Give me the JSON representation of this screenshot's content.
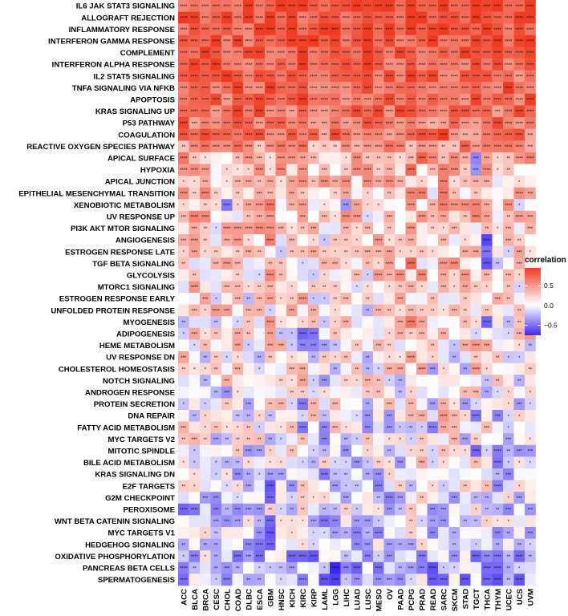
{
  "chart_data": {
    "type": "heatmap",
    "rows": [
      "IL6 JAK STAT3 SIGNALING",
      "ALLOGRAFT REJECTION",
      "INFLAMMATORY RESPONSE",
      "INTERFERON GAMMA RESPONSE",
      "COMPLEMENT",
      "INTERFERON ALPHA RESPONSE",
      "IL2 STAT5 SIGNALING",
      "TNFA SIGNALING VIA NFKB",
      "APOPTOSIS",
      "KRAS SIGNALING UP",
      "P53 PATHWAY",
      "COAGULATION",
      "REACTIVE OXYGEN SPECIES PATHWAY",
      "APICAL SURFACE",
      "HYPOXIA",
      "APICAL JUNCTION",
      "EPITHELIAL MESENCHYMAL TRANSITION",
      "XENOBIOTIC METABOLISM",
      "UV RESPONSE UP",
      "PI3K AKT MTOR SIGNALING",
      "ANGIOGENESIS",
      "ESTROGEN RESPONSE LATE",
      "TGF BETA SIGNALING",
      "GLYCOLYSIS",
      "MTORC1 SIGNALING",
      "ESTROGEN RESPONSE EARLY",
      "UNFOLDED PROTEIN RESPONSE",
      "MYOGENESIS",
      "ADIPOGENESIS",
      "HEME METABOLISM",
      "UV RESPONSE DN",
      "CHOLESTEROL HOMEOSTASIS",
      "NOTCH SIGNALING",
      "ANDROGEN RESPONSE",
      "PROTEIN SECRETION",
      "DNA REPAIR",
      "FATTY ACID METABOLISM",
      "MYC TARGETS V2",
      "MITOTIC SPINDLE",
      "BILE ACID METABOLISM",
      "KRAS SIGNALING DN",
      "E2F TARGETS",
      "G2M CHECKPOINT",
      "PEROXISOME",
      "WNT BETA CATENIN SIGNALING",
      "MYC TARGETS V1",
      "HEDGEHOG SIGNALING",
      "OXIDATIVE PHOSPHORYLATION",
      "PANCREAS BETA CELLS",
      "SPERMATOGENESIS"
    ],
    "columns": [
      "ACC",
      "BLCA",
      "BRCA",
      "CESC",
      "CHOL",
      "COAD",
      "DLBC",
      "ESCA",
      "GBM",
      "HNSC",
      "KICH",
      "KIRC",
      "KIRP",
      "LAML",
      "LGG",
      "LIHC",
      "LUAD",
      "LUSC",
      "MESO",
      "OV",
      "PAAD",
      "PCPG",
      "PRAD",
      "READ",
      "SARC",
      "SKCM",
      "STAD",
      "TGCT",
      "THCA",
      "THYM",
      "UCEC",
      "UCS",
      "UVM"
    ],
    "col_offsets": [
      0.02,
      0.05,
      0.05,
      0.0,
      0.0,
      0.0,
      -0.05,
      0.03,
      0.1,
      0.0,
      0.0,
      0.06,
      0.0,
      -0.03,
      0.05,
      0.0,
      -0.02,
      -0.03,
      0.0,
      -0.02,
      0.05,
      0.12,
      0.1,
      -0.05,
      0.12,
      0.05,
      0.0,
      0.06,
      0.05,
      -0.05,
      0.0,
      -0.03,
      0.05
    ],
    "row_base": [
      0.72,
      0.72,
      0.71,
      0.7,
      0.69,
      0.67,
      0.66,
      0.66,
      0.64,
      0.62,
      0.58,
      0.57,
      0.42,
      0.28,
      0.24,
      0.22,
      0.22,
      0.2,
      0.2,
      0.18,
      0.15,
      0.14,
      0.14,
      0.13,
      0.12,
      0.1,
      0.1,
      0.08,
      0.06,
      0.05,
      0.04,
      0.03,
      0.02,
      0.0,
      0.0,
      -0.02,
      -0.03,
      -0.05,
      -0.06,
      -0.07,
      -0.08,
      -0.09,
      -0.1,
      -0.12,
      -0.13,
      -0.15,
      -0.17,
      -0.2,
      -0.22,
      -0.25
    ],
    "cell_overrides": [
      {
        "row": "PANCREAS BETA CELLS",
        "col": "LGG",
        "value": -0.75
      },
      {
        "row": "SPERMATOGENESIS",
        "col": "LGG",
        "value": -0.62
      },
      {
        "row": "XENOBIOTIC METABOLISM",
        "col": "CHOL",
        "value": -0.45
      },
      {
        "row": "XENOBIOTIC METABOLISM",
        "col": "LIHC",
        "value": -0.35
      },
      {
        "row": "ANGIOGENESIS",
        "col": "THCA",
        "value": -0.6
      },
      {
        "row": "TGF BETA SIGNALING",
        "col": "THCA",
        "value": -0.55
      },
      {
        "row": "ESTROGEN RESPONSE LATE",
        "col": "THCA",
        "value": -0.45
      },
      {
        "row": "MYOGENESIS",
        "col": "THCA",
        "value": -0.5
      },
      {
        "row": "ADIPOGENESIS",
        "col": "KIRC",
        "value": -0.5
      },
      {
        "row": "ADIPOGENESIS",
        "col": "KIRP",
        "value": -0.45
      },
      {
        "row": "HEME METABOLISM",
        "col": "KIRC",
        "value": -0.4
      },
      {
        "row": "HEME METABOLISM",
        "col": "KIRP",
        "value": -0.4
      },
      {
        "row": "PROTEIN SECRETION",
        "col": "KIRC",
        "value": -0.45
      },
      {
        "row": "OXIDATIVE PHOSPHORYLATION",
        "col": "KIRP",
        "value": -0.55
      },
      {
        "row": "OXIDATIVE PHOSPHORYLATION",
        "col": "KIRC",
        "value": -0.5
      },
      {
        "row": "OXIDATIVE PHOSPHORYLATION",
        "col": "KICH",
        "value": -0.5
      },
      {
        "row": "OXIDATIVE PHOSPHORYLATION",
        "col": "TGCT",
        "value": -0.5
      },
      {
        "row": "E2F TARGETS",
        "col": "GBM",
        "value": -0.55
      },
      {
        "row": "G2M CHECKPOINT",
        "col": "GBM",
        "value": -0.5
      },
      {
        "row": "MYC TARGETS V1",
        "col": "GBM",
        "value": -0.55
      },
      {
        "row": "WNT BETA CATENIN SIGNALING",
        "col": "GBM",
        "value": -0.5
      },
      {
        "row": "HEDGEHOG SIGNALING",
        "col": "GBM",
        "value": -0.5
      },
      {
        "row": "SPERMATOGENESIS",
        "col": "SARC",
        "value": -0.5
      },
      {
        "row": "SPERMATOGENESIS",
        "col": "UCS",
        "value": -0.55
      },
      {
        "row": "PEROXISOME",
        "col": "ACC",
        "value": -0.5
      },
      {
        "row": "PEROXISOME",
        "col": "BLCA",
        "value": -0.45
      },
      {
        "row": "MITOTIC SPINDLE",
        "col": "TGCT",
        "value": -0.5
      },
      {
        "row": "FATTY ACID METABOLISM",
        "col": "KIRC",
        "value": -0.45
      },
      {
        "row": "DNA REPAIR",
        "col": "TGCT",
        "value": -0.45
      },
      {
        "row": "APICAL SURFACE",
        "col": "TGCT",
        "value": -0.4
      },
      {
        "row": "HYPOXIA",
        "col": "TGCT",
        "value": -0.35
      },
      {
        "row": "IL6 JAK STAT3 SIGNALING",
        "col": "SARC",
        "value": 0.9
      },
      {
        "row": "ALLOGRAFT REJECTION",
        "col": "TGCT",
        "value": 0.92
      },
      {
        "row": "INFLAMMATORY RESPONSE",
        "col": "GBM",
        "value": 0.88
      },
      {
        "row": "APICAL SURFACE",
        "col": "PRAD",
        "value": 0.7
      },
      {
        "row": "HYPOXIA",
        "col": "PCPG",
        "value": 0.65
      },
      {
        "row": "TGF BETA SIGNALING",
        "col": "PCPG",
        "value": 0.65
      },
      {
        "row": "MYOGENESIS",
        "col": "PCPG",
        "value": 0.6
      }
    ],
    "value_range": [
      -0.75,
      0.95
    ],
    "significance_marks": [
      "*",
      "**",
      "***",
      "****"
    ],
    "color_scale": {
      "low": "#3b28f0",
      "mid": "#ffffff",
      "high": "#ee3b22"
    },
    "legend": {
      "title": "correlation",
      "ticks": [
        0.5,
        0.0,
        -0.5
      ],
      "tick_labels": [
        "0.5",
        "0.0",
        "−0.5"
      ],
      "placement": "right"
    }
  }
}
